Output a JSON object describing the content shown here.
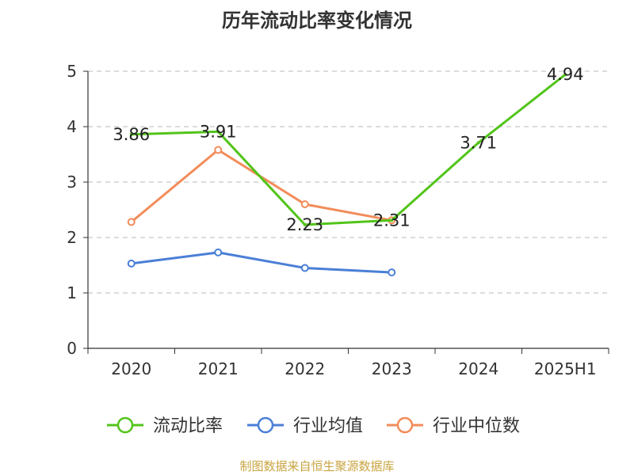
{
  "chart_data": {
    "type": "line",
    "title": "历年流动比率变化情况",
    "categories": [
      "2020",
      "2021",
      "2022",
      "2023",
      "2024",
      "2025H1"
    ],
    "ylim": [
      0,
      5
    ],
    "yticks": [
      "0",
      "1",
      "2",
      "3",
      "4",
      "5"
    ],
    "grid": true,
    "legend_position": "bottom",
    "series": [
      {
        "name": "流动比率",
        "color": "#52c41a",
        "values": [
          3.86,
          3.91,
          2.23,
          2.31,
          3.71,
          4.94
        ],
        "labels": [
          "3.86",
          "3.91",
          "2.23",
          "2.31",
          "3.71",
          "4.94"
        ]
      },
      {
        "name": "行业均值",
        "color": "#4a7fd6",
        "values": [
          1.53,
          1.73,
          1.45,
          1.37,
          null,
          null
        ]
      },
      {
        "name": "行业中位数",
        "color": "#f28c5a",
        "values": [
          2.28,
          3.58,
          2.6,
          2.31,
          null,
          null
        ]
      }
    ]
  },
  "footer": "制图数据来自恒生聚源数据库"
}
